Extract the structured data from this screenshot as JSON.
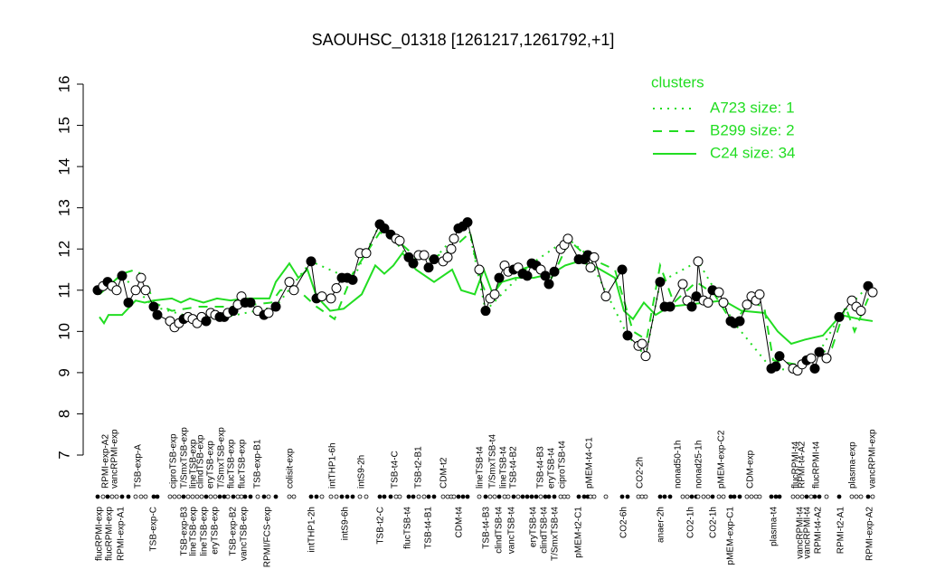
{
  "chart_data": {
    "type": "line",
    "title": "SAOUHSC_01318 [1261217,1261792,+1]",
    "ylim": [
      7,
      16
    ],
    "yticks": [
      7,
      8,
      9,
      10,
      11,
      12,
      13,
      14,
      15,
      16
    ],
    "xlim": [
      100,
      975
    ],
    "legend": {
      "title": "clusters",
      "position": "top-right"
    },
    "points": {
      "x": [
        108,
        114,
        119,
        124,
        129,
        135,
        142,
        150,
        156,
        161,
        170,
        174,
        188,
        193,
        198,
        203,
        208,
        213,
        218,
        223,
        228,
        233,
        238,
        243,
        248,
        252,
        258,
        263,
        267,
        271,
        277,
        285,
        292,
        297,
        305,
        320,
        325,
        344,
        350,
        356,
        366,
        372,
        378,
        384,
        390,
        398,
        405,
        420,
        425,
        432,
        438,
        442,
        452,
        457,
        463,
        469,
        474,
        480,
        490,
        495,
        499,
        502,
        507,
        512,
        517,
        530,
        537,
        542,
        547,
        552,
        558,
        562,
        568,
        573,
        578,
        583,
        588,
        593,
        598,
        603,
        607,
        613,
        620,
        624,
        628,
        640,
        646,
        650,
        653,
        657,
        670,
        688,
        694,
        706,
        710,
        714,
        730,
        735,
        741,
        755,
        760,
        765,
        770,
        772,
        778,
        783,
        788,
        795,
        800,
        808,
        812,
        818,
        826,
        831,
        836,
        840,
        853,
        858,
        862,
        877,
        882,
        887,
        892,
        897,
        901,
        906,
        914,
        928,
        942,
        947,
        952,
        960,
        965
      ],
      "values": [
        11.0,
        11.1,
        11.2,
        11.1,
        11.0,
        11.35,
        10.7,
        11.0,
        11.3,
        11.0,
        10.6,
        10.4,
        10.25,
        10.1,
        10.2,
        10.3,
        10.35,
        10.3,
        10.2,
        10.35,
        10.25,
        10.45,
        10.4,
        10.35,
        10.35,
        10.45,
        10.5,
        10.65,
        10.85,
        10.7,
        10.7,
        10.5,
        10.4,
        10.45,
        10.6,
        11.2,
        11.0,
        11.7,
        10.8,
        10.85,
        10.8,
        11.05,
        11.3,
        11.3,
        11.25,
        11.9,
        11.9,
        12.6,
        12.5,
        12.35,
        12.25,
        12.2,
        11.8,
        11.65,
        11.85,
        11.85,
        11.55,
        11.75,
        11.7,
        11.8,
        12.0,
        12.25,
        12.5,
        12.55,
        12.65,
        11.5,
        10.5,
        10.8,
        10.9,
        11.3,
        11.6,
        11.45,
        11.5,
        11.55,
        11.4,
        11.35,
        11.65,
        11.6,
        11.5,
        11.35,
        11.15,
        11.45,
        12.0,
        12.1,
        12.25,
        11.75,
        11.75,
        11.85,
        11.55,
        11.8,
        10.85,
        11.5,
        9.9,
        9.65,
        9.7,
        9.4,
        11.2,
        10.6,
        10.6,
        11.15,
        10.75,
        10.6,
        10.85,
        11.7,
        10.75,
        10.7,
        11.0,
        10.95,
        10.7,
        10.25,
        10.2,
        10.25,
        10.65,
        10.85,
        10.75,
        10.9,
        9.1,
        9.15,
        9.4,
        9.1,
        9.05,
        9.2,
        9.3,
        9.35,
        9.1,
        9.5,
        9.35,
        10.35,
        10.75,
        10.6,
        10.5,
        11.1,
        10.95
      ],
      "colors": [
        "black",
        "white",
        "black",
        "white",
        "white",
        "black",
        "black",
        "white",
        "white",
        "white",
        "black",
        "black",
        "white",
        "white",
        "white",
        "black",
        "white",
        "white",
        "white",
        "white",
        "black",
        "white",
        "white",
        "black",
        "black",
        "white",
        "black",
        "white",
        "white",
        "black",
        "black",
        "white",
        "black",
        "white",
        "black",
        "white",
        "white",
        "black",
        "black",
        "white",
        "white",
        "white",
        "black",
        "black",
        "black",
        "white",
        "white",
        "black",
        "black",
        "black",
        "white",
        "white",
        "black",
        "black",
        "white",
        "white",
        "black",
        "black",
        "white",
        "white",
        "white",
        "white",
        "black",
        "black",
        "black",
        "white",
        "black",
        "white",
        "white",
        "black",
        "white",
        "white",
        "black",
        "white",
        "black",
        "black",
        "black",
        "black",
        "white",
        "black",
        "black",
        "black",
        "white",
        "white",
        "white",
        "black",
        "black",
        "black",
        "white",
        "white",
        "white",
        "black",
        "black",
        "white",
        "white",
        "white",
        "black",
        "black",
        "black",
        "white",
        "white",
        "black",
        "black",
        "white",
        "white",
        "white",
        "black",
        "white",
        "white",
        "black",
        "black",
        "black",
        "white",
        "white",
        "white",
        "white",
        "black",
        "black",
        "black",
        "white",
        "white",
        "white",
        "black",
        "white",
        "black",
        "black",
        "white",
        "black",
        "white",
        "white",
        "white",
        "black",
        "white"
      ]
    },
    "series": [
      {
        "name": "A723 size: 1",
        "style": "dotted",
        "color": "#22dd22",
        "x": [
          108,
          135,
          170,
          228,
          305,
          344,
          390,
          420,
          452,
          480,
          517,
          537,
          588,
          628,
          650,
          694,
          714,
          730,
          772,
          812,
          853,
          882,
          906,
          928,
          960
        ],
        "values": [
          11.0,
          11.35,
          10.6,
          10.25,
          10.6,
          11.7,
          11.25,
          12.6,
          11.8,
          11.75,
          12.65,
          10.5,
          11.65,
          12.25,
          11.85,
          9.9,
          9.4,
          11.2,
          11.7,
          10.2,
          9.1,
          9.05,
          9.5,
          10.35,
          11.1
        ]
      },
      {
        "name": "B299 size: 2",
        "style": "dashed",
        "color": "#22dd22",
        "x": [
          110,
          135,
          150,
          160,
          170,
          190,
          220,
          260,
          300,
          310,
          330,
          350,
          370,
          390,
          420,
          440,
          455,
          480,
          500,
          520,
          530,
          540,
          560,
          590,
          610,
          630,
          650,
          680,
          700,
          715,
          730,
          745,
          770,
          790,
          810,
          830,
          845,
          855,
          880,
          900,
          920,
          935,
          945,
          960
        ],
        "values": [
          10.9,
          11.4,
          11.5,
          11.3,
          10.7,
          10.5,
          10.6,
          10.6,
          10.7,
          11.0,
          11.0,
          10.6,
          10.3,
          11.4,
          12.4,
          12.2,
          11.9,
          11.8,
          12.0,
          12.4,
          11.3,
          10.8,
          11.4,
          11.6,
          11.3,
          12.2,
          11.8,
          11.5,
          10.0,
          9.8,
          11.6,
          10.7,
          11.2,
          10.9,
          10.2,
          10.7,
          10.6,
          9.3,
          9.2,
          9.4,
          9.6,
          10.6,
          10.0,
          10.8
        ]
      },
      {
        "name": "C24 size: 34",
        "style": "solid",
        "color": "#22dd22",
        "x": [
          110,
          115,
          120,
          135,
          150,
          160,
          170,
          190,
          200,
          210,
          225,
          240,
          255,
          270,
          285,
          298,
          305,
          320,
          330,
          340,
          350,
          365,
          380,
          400,
          415,
          425,
          435,
          445,
          460,
          480,
          500,
          510,
          525,
          535,
          545,
          555,
          570,
          590,
          610,
          625,
          640,
          660,
          680,
          690,
          700,
          712,
          725,
          740,
          760,
          780,
          800,
          820,
          845,
          860,
          875,
          890,
          910,
          930,
          950,
          965
        ],
        "values": [
          10.35,
          10.2,
          10.4,
          10.4,
          10.75,
          10.7,
          10.75,
          10.8,
          10.7,
          10.8,
          10.7,
          10.8,
          10.75,
          10.8,
          10.8,
          10.8,
          11.2,
          11.65,
          11.3,
          11.5,
          10.85,
          10.5,
          10.55,
          10.9,
          11.6,
          11.4,
          11.6,
          11.9,
          11.5,
          11.2,
          11.5,
          11.0,
          10.9,
          11.5,
          10.9,
          11.2,
          11.3,
          11.3,
          11.4,
          11.6,
          11.7,
          11.55,
          11.3,
          10.5,
          10.3,
          10.7,
          10.4,
          10.6,
          10.65,
          10.7,
          10.75,
          10.5,
          10.45,
          10.0,
          9.7,
          9.8,
          9.9,
          10.4,
          10.3,
          10.25
        ]
      }
    ],
    "xticks": [
      {
        "value": 110,
        "label": "flucRPMI-exp"
      },
      {
        "value": 121,
        "label": "flucRPMI-exp"
      },
      {
        "value": 134,
        "label": "RPMI-exp-A1"
      },
      {
        "value": 170,
        "label": "TSB-exp-C"
      },
      {
        "value": 204,
        "label": "TSB-exp-B3"
      },
      {
        "value": 214,
        "label": "lineTSB-exp"
      },
      {
        "value": 226,
        "label": "lineTSB-exp"
      },
      {
        "value": 238,
        "label": "eryTSB-exp"
      },
      {
        "value": 258,
        "label": "TSB-exp-B2"
      },
      {
        "value": 270,
        "label": "vancTSB-exp"
      },
      {
        "value": 296,
        "label": "RPMI/FCS-exp"
      },
      {
        "value": 345,
        "label": "intTHP1-2h"
      },
      {
        "value": 382,
        "label": "intS9-6h"
      },
      {
        "value": 421,
        "label": "TSB-t2-C"
      },
      {
        "value": 451,
        "label": "flucTSB-t4"
      },
      {
        "value": 474,
        "label": "TSB-t4-B1"
      },
      {
        "value": 508,
        "label": "CDM-t4"
      },
      {
        "value": 538,
        "label": "TSB-t4-B3"
      },
      {
        "value": 552,
        "label": "clindTSB-t4"
      },
      {
        "value": 566,
        "label": "vancTSB-t4"
      },
      {
        "value": 590,
        "label": "eryTSB-t4"
      },
      {
        "value": 602,
        "label": "clindTSB-t4"
      },
      {
        "value": 614,
        "label": "T/SmxTSB-t4"
      },
      {
        "value": 640,
        "label": "pMEM-t2-C1"
      },
      {
        "value": 690,
        "label": "CO2-6h"
      },
      {
        "value": 731,
        "label": "anaer-2h"
      },
      {
        "value": 764,
        "label": "CO2-1h"
      },
      {
        "value": 789,
        "label": "CO2-1h"
      },
      {
        "value": 808,
        "label": "pMEM-exp-C1"
      },
      {
        "value": 856,
        "label": "plasma-t4"
      },
      {
        "value": 885,
        "label": "vancRPMI-t4"
      },
      {
        "value": 893,
        "label": "vancRPMI-t4"
      },
      {
        "value": 905,
        "label": "RPMI-t4-A2"
      },
      {
        "value": 930,
        "label": "RPMI-t2-A1"
      },
      {
        "value": 962,
        "label": "RPMI-exp-A2"
      }
    ],
    "xticks_top": [
      {
        "value": 117,
        "label": "RPMI-exp-A2"
      },
      {
        "value": 127,
        "label": "vancRPMI-exp"
      },
      {
        "value": 153,
        "label": "TSB-exp-A"
      },
      {
        "value": 192,
        "label": "ciproTSB-exp"
      },
      {
        "value": 204,
        "label": "T/SmxTSB-exp"
      },
      {
        "value": 214,
        "label": "lineTSB-exp"
      },
      {
        "value": 222,
        "label": "clindTSB-exp"
      },
      {
        "value": 233,
        "label": "eryTSB-exp"
      },
      {
        "value": 245,
        "label": "T/SmxTSB-exp"
      },
      {
        "value": 256,
        "label": "flucTSB-exp"
      },
      {
        "value": 268,
        "label": "flucTSB-exp"
      },
      {
        "value": 285,
        "label": "TSB-exp-B1"
      },
      {
        "value": 321,
        "label": "colisit-exp"
      },
      {
        "value": 368,
        "label": "intTHP1-6h"
      },
      {
        "value": 400,
        "label": "intS9-2h"
      },
      {
        "value": 437,
        "label": "TSB-t4-C"
      },
      {
        "value": 463,
        "label": "TSB-t2-B1"
      },
      {
        "value": 491,
        "label": "CDM-t2"
      },
      {
        "value": 531,
        "label": "lineTSB-t4"
      },
      {
        "value": 545,
        "label": "T/SmxTSB-t4"
      },
      {
        "value": 557,
        "label": "lineTSB-t4"
      },
      {
        "value": 568,
        "label": "TSB-t4-B2"
      },
      {
        "value": 598,
        "label": "TSB-t4-B3"
      },
      {
        "value": 610,
        "label": "eryTSB-t4"
      },
      {
        "value": 622,
        "label": "ciproTSB-t4"
      },
      {
        "value": 652,
        "label": "pMEM-t4-C1"
      },
      {
        "value": 708,
        "label": "CO2-2h"
      },
      {
        "value": 750,
        "label": "nonad50-1h"
      },
      {
        "value": 773,
        "label": "nonad25-1h"
      },
      {
        "value": 798,
        "label": "pMEM-exp-C2"
      },
      {
        "value": 830,
        "label": "CDM-exp"
      },
      {
        "value": 880,
        "label": "flucRPMI-t4"
      },
      {
        "value": 887,
        "label": "RPMI-t4-A2"
      },
      {
        "value": 903,
        "label": "flucRPMI-t4"
      },
      {
        "value": 943,
        "label": "plasma-exp"
      },
      {
        "value": 965,
        "label": "vancRPMI-exp"
      }
    ]
  }
}
